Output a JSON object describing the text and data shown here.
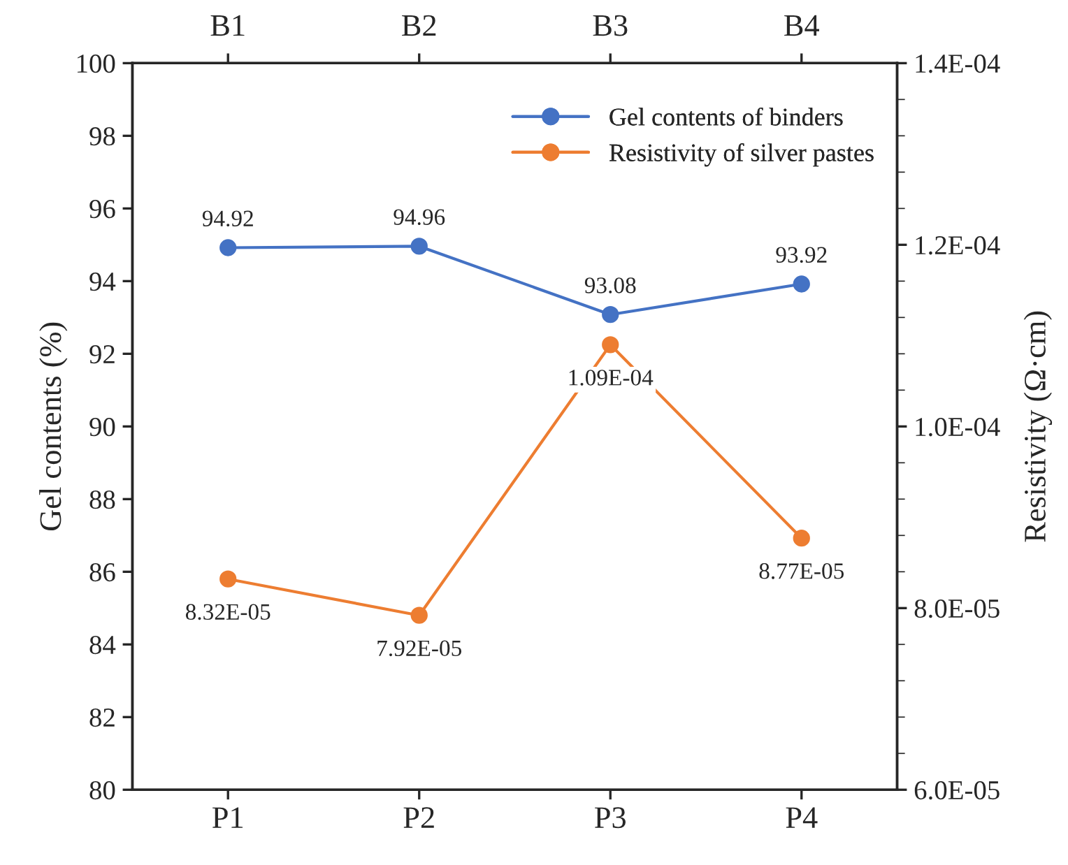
{
  "chart_data": {
    "type": "line",
    "xlabel": null,
    "ylabel": "Gel contents (%)",
    "y2label": "Resistivity (Ω·cm)",
    "categories": [
      "P1",
      "P2",
      "P3",
      "P4"
    ],
    "annotations": [
      {
        "text": "B1",
        "x": "P1"
      },
      {
        "text": "B2",
        "x": "P2"
      },
      {
        "text": "B3",
        "x": "P3"
      },
      {
        "text": "B4",
        "x": "P4"
      }
    ],
    "ylim": [
      80,
      100
    ],
    "yticks": [
      80,
      82,
      84,
      86,
      88,
      90,
      92,
      94,
      96,
      98,
      100
    ],
    "y2lim": [
      6e-05,
      0.00014
    ],
    "y2ticks": [
      {
        "value": 6e-05,
        "label": "6.0E-05"
      },
      {
        "value": 8e-05,
        "label": "8.0E-05"
      },
      {
        "value": 0.0001,
        "label": "1.0E-04"
      },
      {
        "value": 0.00012,
        "label": "1.2E-04"
      },
      {
        "value": 0.00014,
        "label": "1.4E-04"
      }
    ],
    "series": [
      {
        "name": "Gel contents of binders",
        "color": "#4472c4",
        "values": [
          94.92,
          94.96,
          93.08,
          93.92
        ],
        "value_labels": [
          "94.92",
          "94.96",
          "93.08",
          "93.92"
        ]
      },
      {
        "name": "Resistivity of silver pastes",
        "color": "#ed7d31",
        "axis": "y2",
        "values": [
          8.32e-05,
          7.92e-05,
          0.000109,
          8.77e-05
        ],
        "value_labels": [
          "8.32E-05",
          "7.92E-05",
          "1.09E-04",
          "8.77E-05"
        ]
      }
    ],
    "marker": "circle",
    "line_style": "solid",
    "legend": "top right",
    "grid": false
  }
}
